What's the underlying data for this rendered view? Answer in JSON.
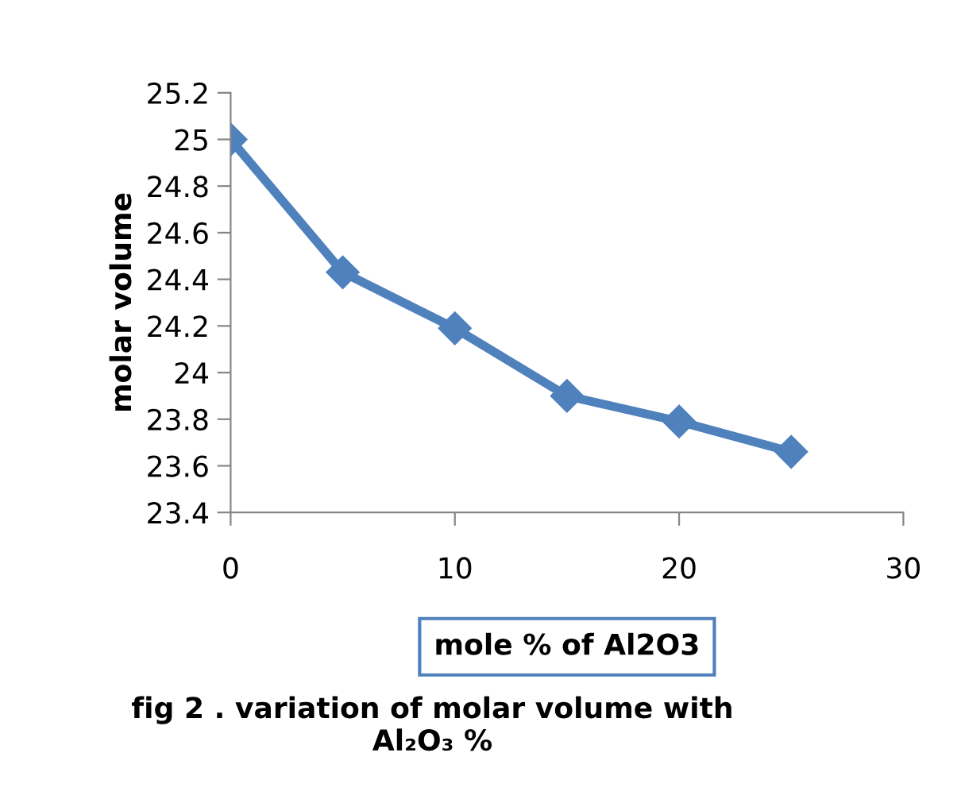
{
  "chart_data": {
    "type": "line",
    "xlabel": "mole % of Al2O3",
    "ylabel": "molar volume",
    "x": [
      0,
      5,
      10,
      15,
      20,
      25
    ],
    "series": [
      {
        "color": "#4f81bd",
        "values": [
          25.0,
          24.43,
          24.19,
          23.9,
          23.79,
          23.66
        ]
      }
    ],
    "xlim": [
      0,
      30
    ],
    "xticks": [
      0,
      10,
      20,
      30
    ],
    "ylim": [
      23.4,
      25.2
    ],
    "yticks": [
      {
        "value": 23.4,
        "label": "23.4"
      },
      {
        "value": 23.6,
        "label": "23.6"
      },
      {
        "value": 23.8,
        "label": "23.8"
      },
      {
        "value": 24,
        "label": "24"
      },
      {
        "value": 24.2,
        "label": "24.2"
      },
      {
        "value": 24.4,
        "label": "24.4"
      },
      {
        "value": 24.6,
        "label": "24.6"
      },
      {
        "value": 24.8,
        "label": "24.8"
      },
      {
        "value": 25,
        "label": "25"
      },
      {
        "value": 25.2,
        "label": "25.2"
      }
    ],
    "grid": false,
    "legend": false,
    "marker": "diamond",
    "line_style": "solid",
    "annotations": [
      "fig 2 . variation of molar volume with\nAl₂O₃ %"
    ]
  }
}
